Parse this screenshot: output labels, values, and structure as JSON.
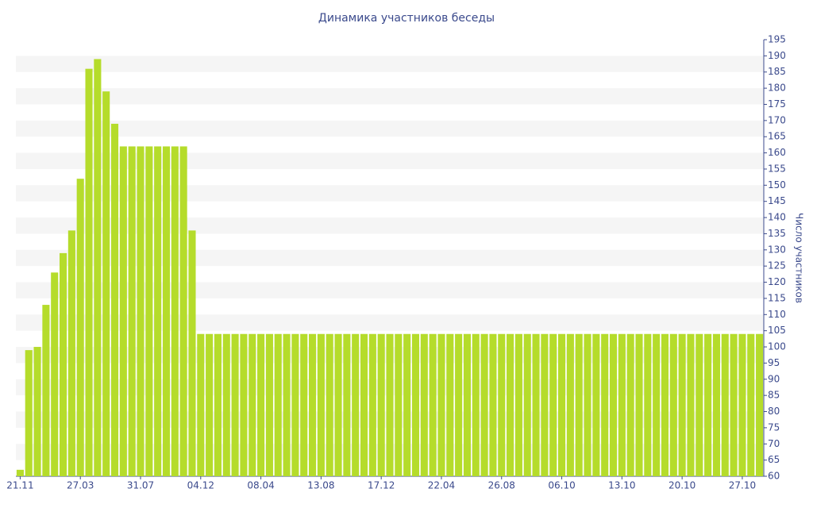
{
  "chart_data": {
    "type": "bar",
    "title": "Динамика участников беседы",
    "y_label": "Число участников",
    "categories": [
      "21.11",
      null,
      null,
      null,
      null,
      null,
      null,
      "27.03",
      null,
      null,
      null,
      null,
      null,
      null,
      "31.07",
      null,
      null,
      null,
      null,
      null,
      null,
      "04.12",
      null,
      null,
      null,
      null,
      null,
      null,
      "08.04",
      null,
      null,
      null,
      null,
      null,
      null,
      "13.08",
      null,
      null,
      null,
      null,
      null,
      null,
      "17.12",
      null,
      null,
      null,
      null,
      null,
      null,
      "22.04",
      null,
      null,
      null,
      null,
      null,
      null,
      "26.08",
      null,
      null,
      null,
      null,
      null,
      null,
      "06.10",
      null,
      null,
      null,
      null,
      null,
      null,
      "13.10",
      null,
      null,
      null,
      null,
      null,
      null,
      "20.10",
      null,
      null,
      null,
      null,
      null,
      null,
      "27.10",
      null,
      null
    ],
    "values": [
      62,
      99,
      100,
      113,
      123,
      129,
      136,
      152,
      186,
      189,
      179,
      169,
      162,
      162,
      162,
      162,
      162,
      162,
      162,
      162,
      136,
      104,
      104,
      104,
      104,
      104,
      104,
      104,
      104,
      104,
      104,
      104,
      104,
      104,
      104,
      104,
      104,
      104,
      104,
      104,
      104,
      104,
      104,
      104,
      104,
      104,
      104,
      104,
      104,
      104,
      104,
      104,
      104,
      104,
      104,
      104,
      104,
      104,
      104,
      104,
      104,
      104,
      104,
      104,
      104,
      104,
      104,
      104,
      104,
      104,
      104,
      104,
      104,
      104,
      104,
      104,
      104,
      104,
      104,
      104,
      104,
      104,
      104,
      104,
      104,
      104,
      104
    ],
    "color": "#b5dc2b",
    "ylim": [
      60,
      195
    ],
    "yticks": [
      60,
      65,
      70,
      75,
      80,
      85,
      90,
      95,
      100,
      105,
      110,
      115,
      120,
      125,
      130,
      135,
      140,
      145,
      150,
      155,
      160,
      165,
      170,
      175,
      180,
      185,
      190,
      195
    ],
    "y_axis_side": "right",
    "grid": true
  }
}
